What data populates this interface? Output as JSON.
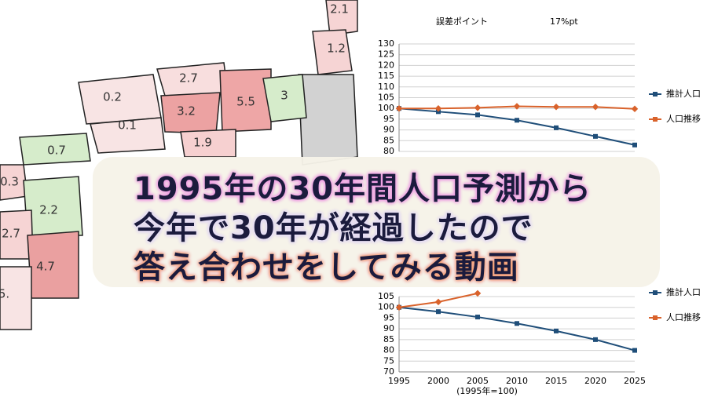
{
  "map": {
    "labels": [
      "2.1",
      "1.2",
      "2.7",
      "0.2",
      "3.2",
      "5.5",
      "3",
      "0.1",
      "1.9",
      "0.7",
      "0.3",
      "2.2",
      "2.7",
      "4.7",
      "5."
    ]
  },
  "chart_data": [
    {
      "type": "line",
      "title": "誤差ポイント",
      "annotation": "17%pt",
      "x": [
        1995,
        2000,
        2005,
        2010,
        2015,
        2020,
        2025
      ],
      "xlim": [
        1995,
        2025
      ],
      "ylim": [
        80,
        130
      ],
      "yticks": [
        80,
        85,
        90,
        95,
        100,
        105,
        110,
        115,
        120,
        125,
        130
      ],
      "grid": true,
      "series": [
        {
          "name": "推計人口",
          "color": "#1f4e79",
          "values": [
            100,
            98.5,
            97,
            94.5,
            91,
            87,
            83
          ]
        },
        {
          "name": "人口推移",
          "color": "#d9622b",
          "values": [
            100,
            100,
            100.3,
            101,
            100.7,
            100.7,
            99.8
          ]
        }
      ]
    },
    {
      "type": "line",
      "x": [
        1995,
        2000,
        2005,
        2010,
        2015,
        2020,
        2025
      ],
      "xlim": [
        1995,
        2025
      ],
      "xticks": [
        1995,
        2000,
        2005,
        2010,
        2015,
        2020,
        2025
      ],
      "xlabel": "(1995年=100)",
      "ylim": [
        70,
        105
      ],
      "yticks": [
        70,
        75,
        80,
        85,
        90,
        95,
        100,
        105
      ],
      "grid": true,
      "series": [
        {
          "name": "推計人口",
          "color": "#1f4e79",
          "values": [
            100,
            98,
            95.5,
            92.5,
            89,
            85,
            80
          ]
        },
        {
          "name": "人口推移",
          "color": "#d9622b",
          "values": [
            100,
            102.5,
            106.5,
            null,
            null,
            null,
            null
          ]
        }
      ]
    }
  ],
  "banner": {
    "lines": [
      "1995年の30年間人口予測から",
      "今年で30年が経過したので",
      "答え合わせをしてみる動画"
    ]
  }
}
